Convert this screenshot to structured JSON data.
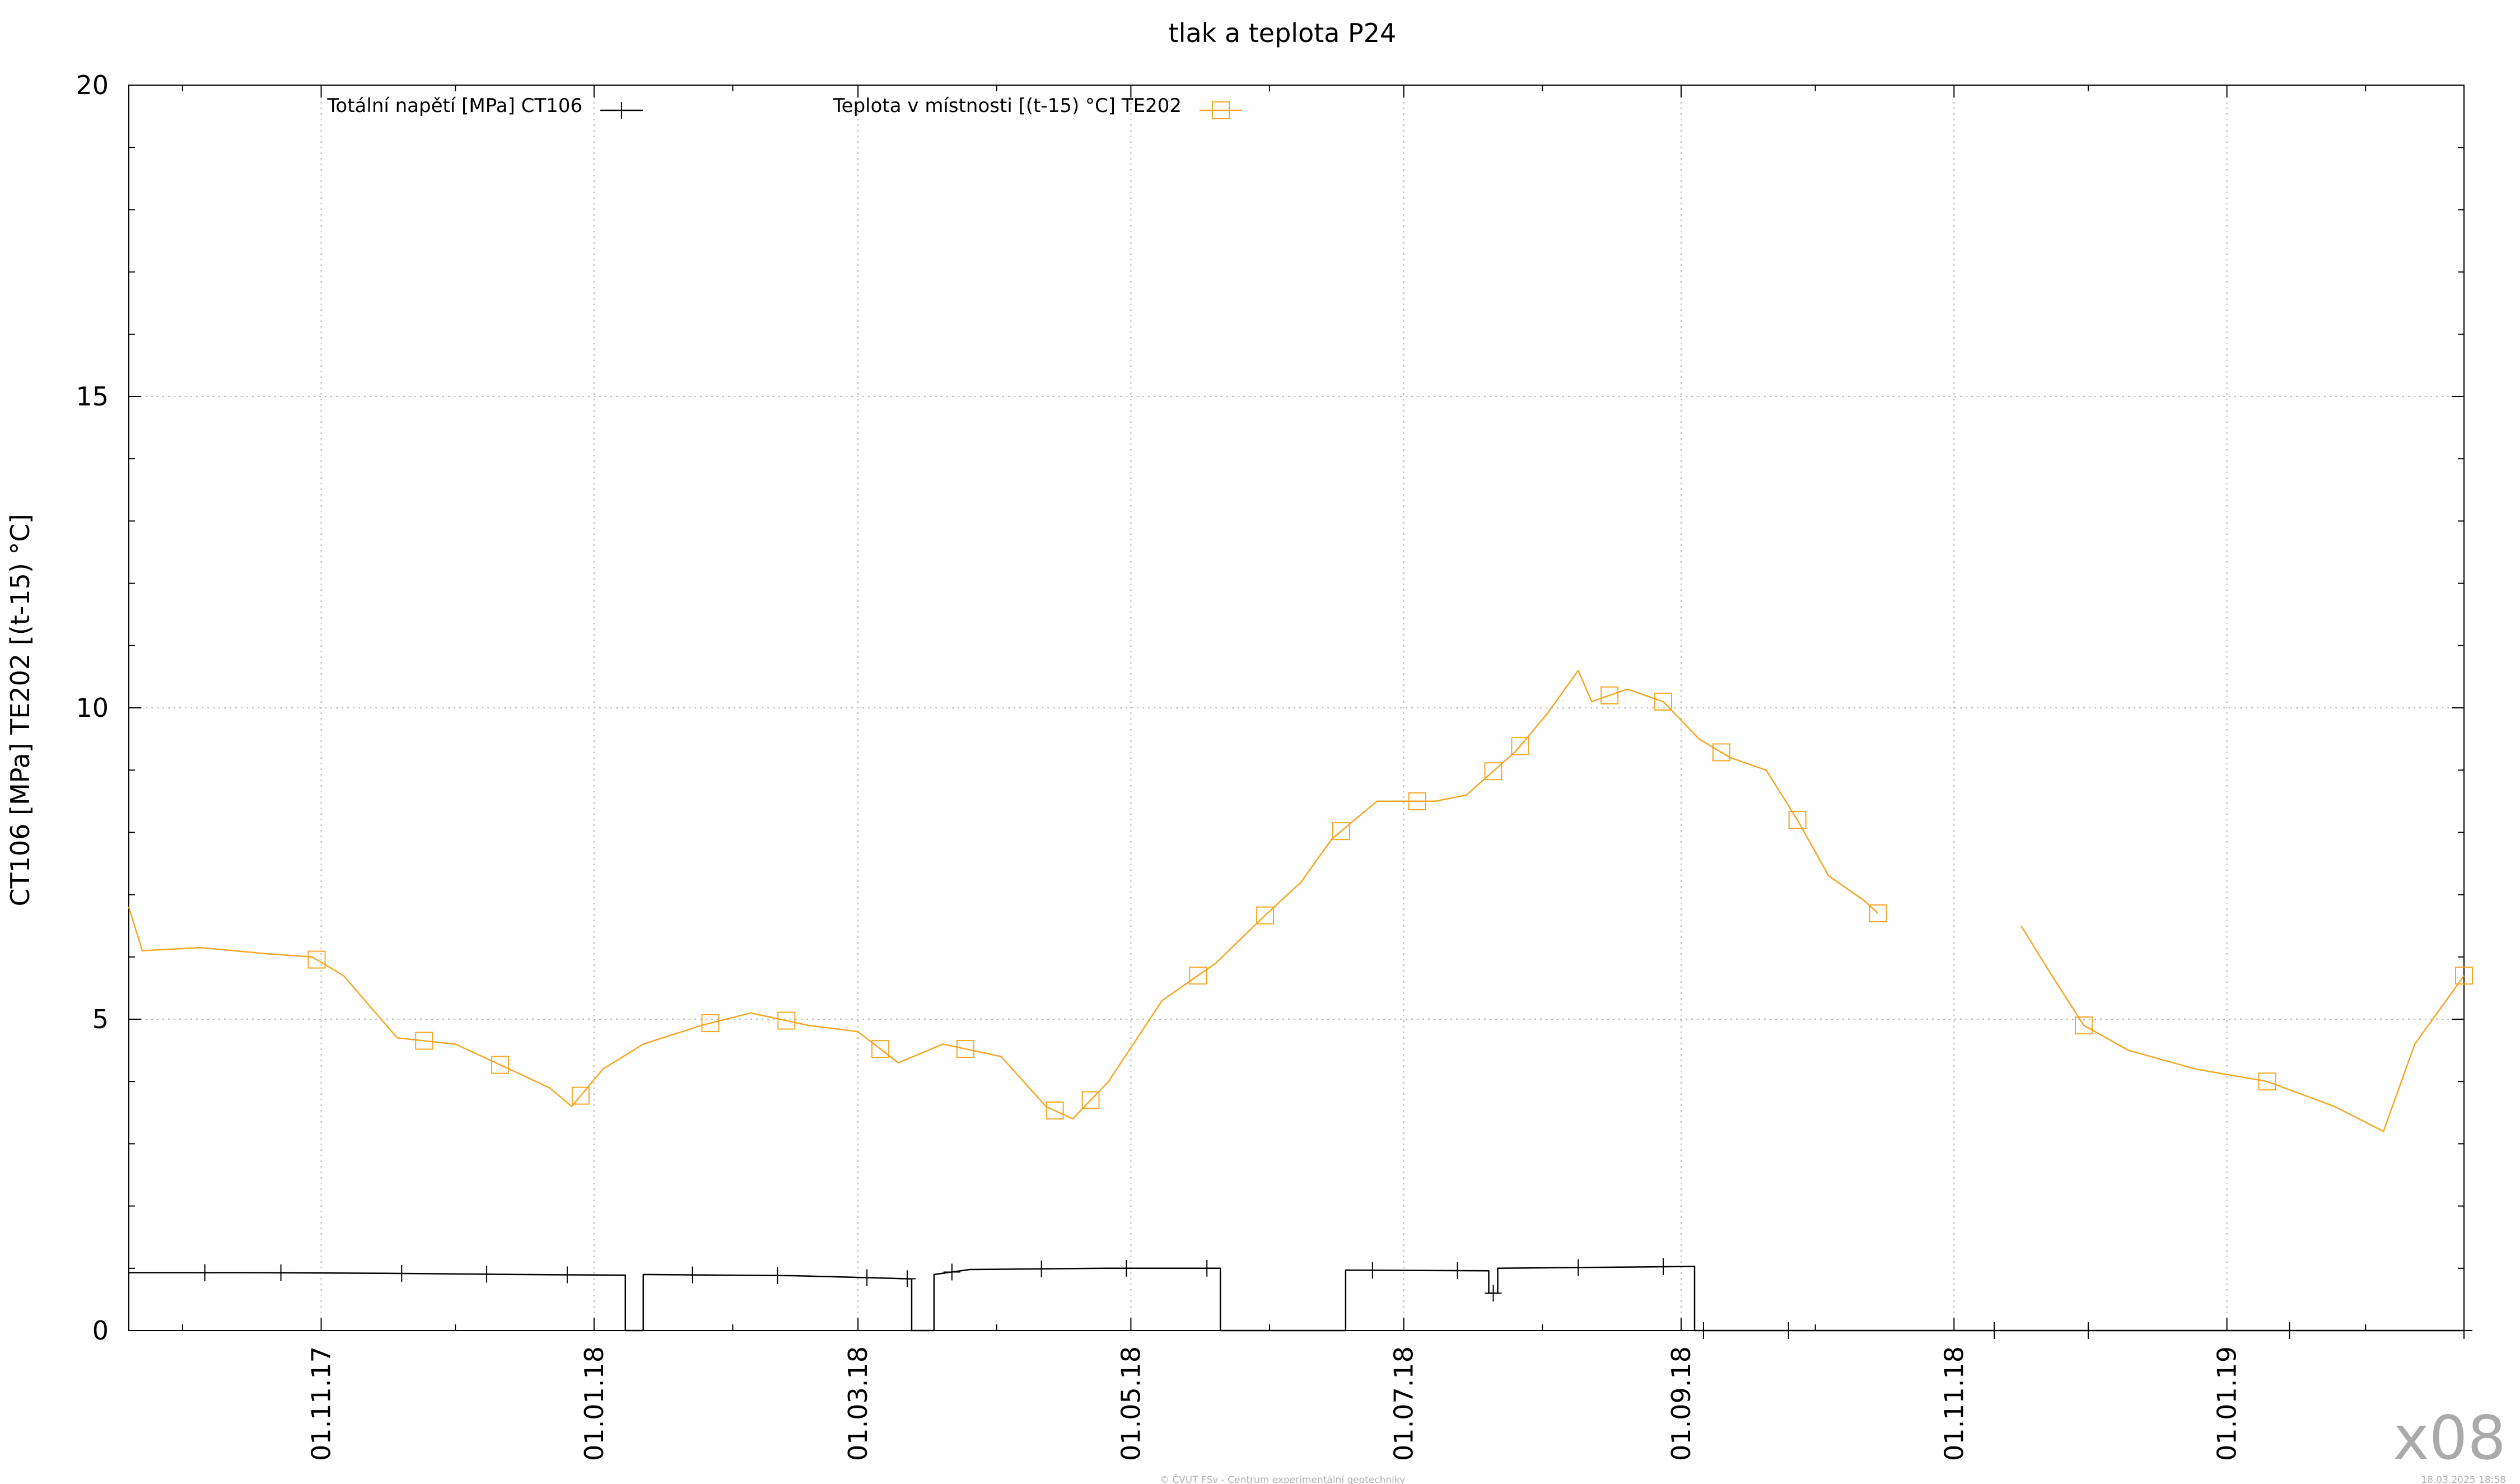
{
  "chart_data": {
    "type": "line",
    "title": "tlak a teplota P24",
    "ylabel": "CT106 [MPa] TE202 [(t-15) °C]",
    "ylim": [
      0,
      20
    ],
    "yticks": [
      "0",
      "5",
      "10",
      "15",
      "20"
    ],
    "xlim": [
      "2017-09-19",
      "2019-02-23"
    ],
    "xticks": [
      "01.11.17",
      "01.01.18",
      "01.03.18",
      "01.05.18",
      "01.07.18",
      "01.09.18",
      "01.11.18",
      "01.01.19"
    ],
    "xtick_dates": [
      "2017-11-01",
      "2018-01-01",
      "2018-03-01",
      "2018-05-01",
      "2018-07-01",
      "2018-09-01",
      "2018-11-01",
      "2019-01-01"
    ],
    "grid": true,
    "legend_position": "top",
    "series": [
      {
        "name": "Totální napětí [MPa] CT106",
        "color": "#000000",
        "marker": "plus",
        "points": [
          [
            "2017-09-19",
            0.93
          ],
          [
            "2017-10-15",
            0.93
          ],
          [
            "2017-11-15",
            0.92
          ],
          [
            "2017-12-15",
            0.9
          ],
          [
            "2018-01-07",
            0.89
          ],
          [
            "2018-01-08",
            0.89
          ],
          [
            "2018-01-08",
            0.0
          ],
          [
            "2018-01-12",
            0.0
          ],
          [
            "2018-01-12",
            0.9
          ],
          [
            "2018-02-15",
            0.88
          ],
          [
            "2018-03-03",
            0.85
          ],
          [
            "2018-03-13",
            0.83
          ],
          [
            "2018-03-13",
            0.0
          ],
          [
            "2018-03-18",
            0.0
          ],
          [
            "2018-03-18",
            0.9
          ],
          [
            "2018-03-26",
            0.98
          ],
          [
            "2018-04-25",
            1.0
          ],
          [
            "2018-05-21",
            1.0
          ],
          [
            "2018-05-21",
            0.0
          ],
          [
            "2018-06-18",
            0.0
          ],
          [
            "2018-06-18",
            0.97
          ],
          [
            "2018-07-20",
            0.96
          ],
          [
            "2018-07-20",
            0.6
          ],
          [
            "2018-07-22",
            0.6
          ],
          [
            "2018-07-22",
            1.0
          ],
          [
            "2018-09-04",
            1.03
          ],
          [
            "2018-09-04",
            0.0
          ],
          [
            "2019-02-23",
            0.0
          ]
        ],
        "markers": [
          "2017-10-06",
          "2017-10-23",
          "2017-11-19",
          "2017-12-08",
          "2017-12-26",
          "2018-01-23",
          "2018-02-11",
          "2018-03-03",
          "2018-03-12",
          "2018-03-22",
          "2018-04-11",
          "2018-04-30",
          "2018-05-18",
          "2018-06-24",
          "2018-07-13",
          "2018-07-21",
          "2018-08-09",
          "2018-08-28",
          "2018-09-06",
          "2018-09-25",
          "2018-11-10",
          "2018-12-01",
          "2019-01-15",
          "2019-02-23"
        ]
      },
      {
        "name": "Teplota v místnosti [(t-15) °C] TE202",
        "color": "#f5a623",
        "marker": "square",
        "points": [
          [
            "2017-09-19",
            6.8
          ],
          [
            "2017-09-22",
            6.1
          ],
          [
            "2017-10-05",
            6.15
          ],
          [
            "2017-10-20",
            6.05
          ],
          [
            "2017-10-30",
            6.0
          ],
          [
            "2017-11-06",
            5.7
          ],
          [
            "2017-11-18",
            4.7
          ],
          [
            "2017-12-01",
            4.6
          ],
          [
            "2017-12-10",
            4.3
          ],
          [
            "2017-12-22",
            3.9
          ],
          [
            "2017-12-27",
            3.6
          ],
          [
            "2018-01-03",
            4.2
          ],
          [
            "2018-01-12",
            4.6
          ],
          [
            "2018-01-25",
            4.9
          ],
          [
            "2018-02-05",
            5.1
          ],
          [
            "2018-02-18",
            4.9
          ],
          [
            "2018-03-01",
            4.8
          ],
          [
            "2018-03-10",
            4.3
          ],
          [
            "2018-03-20",
            4.6
          ],
          [
            "2018-04-02",
            4.4
          ],
          [
            "2018-04-12",
            3.6
          ],
          [
            "2018-04-18",
            3.4
          ],
          [
            "2018-04-26",
            4.0
          ],
          [
            "2018-05-08",
            5.3
          ],
          [
            "2018-05-20",
            5.9
          ],
          [
            "2018-05-30",
            6.6
          ],
          [
            "2018-06-08",
            7.2
          ],
          [
            "2018-06-15",
            7.9
          ],
          [
            "2018-06-25",
            8.5
          ],
          [
            "2018-07-08",
            8.5
          ],
          [
            "2018-07-15",
            8.6
          ],
          [
            "2018-07-26",
            9.3
          ],
          [
            "2018-08-02",
            9.9
          ],
          [
            "2018-08-09",
            10.6
          ],
          [
            "2018-08-12",
            10.1
          ],
          [
            "2018-08-20",
            10.3
          ],
          [
            "2018-08-28",
            10.1
          ],
          [
            "2018-09-05",
            9.5
          ],
          [
            "2018-09-12",
            9.2
          ],
          [
            "2018-09-20",
            9.0
          ],
          [
            "2018-09-27",
            8.2
          ],
          [
            "2018-10-04",
            7.3
          ],
          [
            "2018-10-12",
            6.9
          ],
          [
            "2018-10-15",
            6.7
          ],
          null,
          [
            "2018-11-16",
            6.5
          ],
          [
            "2018-11-22",
            5.8
          ],
          [
            "2018-11-30",
            4.9
          ],
          [
            "2018-12-10",
            4.5
          ],
          [
            "2018-12-25",
            4.2
          ],
          [
            "2019-01-10",
            4.0
          ],
          [
            "2019-01-25",
            3.6
          ],
          [
            "2019-02-05",
            3.2
          ],
          [
            "2019-02-12",
            4.6
          ],
          [
            "2019-02-23",
            5.7
          ]
        ],
        "markers": [
          "2017-10-31",
          "2017-11-24",
          "2017-12-11",
          "2017-12-29",
          "2018-01-27",
          "2018-02-13",
          "2018-03-06",
          "2018-03-25",
          "2018-04-14",
          "2018-04-22",
          "2018-05-16",
          "2018-05-31",
          "2018-06-17",
          "2018-07-04",
          "2018-07-21",
          "2018-07-27",
          "2018-08-16",
          "2018-08-28",
          "2018-09-10",
          "2018-09-27",
          "2018-10-15",
          "2018-11-30",
          "2019-01-10",
          "2019-02-23"
        ]
      }
    ]
  },
  "watermark": "x08",
  "footer_credit": "© ČVUT FSv - Centrum experimentální geotechniky",
  "footer_timestamp": "18.03.2025 18:58"
}
